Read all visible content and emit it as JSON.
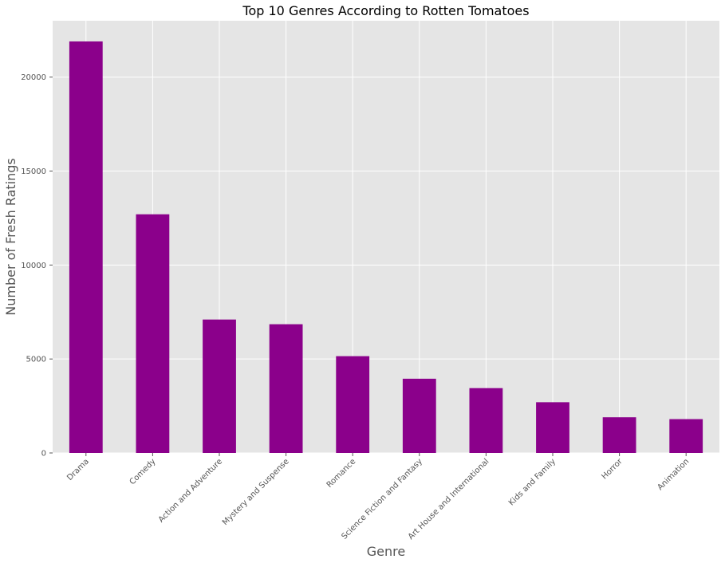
{
  "chart_data": {
    "type": "bar",
    "title": "Top 10 Genres According to Rotten Tomatoes",
    "xlabel": "Genre",
    "ylabel": "Number of Fresh Ratings",
    "categories": [
      "Drama",
      "Comedy",
      "Action and Adventure",
      "Mystery and Suspense",
      "Romance",
      "Science Fiction and Fantasy",
      "Art House and International",
      "Kids and Family",
      "Horror",
      "Animation"
    ],
    "values": [
      21900,
      12700,
      7100,
      6850,
      5150,
      3950,
      3450,
      2700,
      1900,
      1800
    ],
    "ylim": [
      0,
      23000
    ],
    "yticks": [
      0,
      5000,
      10000,
      15000,
      20000
    ],
    "grid": true,
    "legend": "none",
    "colors": {
      "bar": "#8b008b",
      "plot_background": "#e5e5e5",
      "grid": "#ffffff",
      "tick_text": "#555555",
      "title_text": "#000000"
    }
  }
}
